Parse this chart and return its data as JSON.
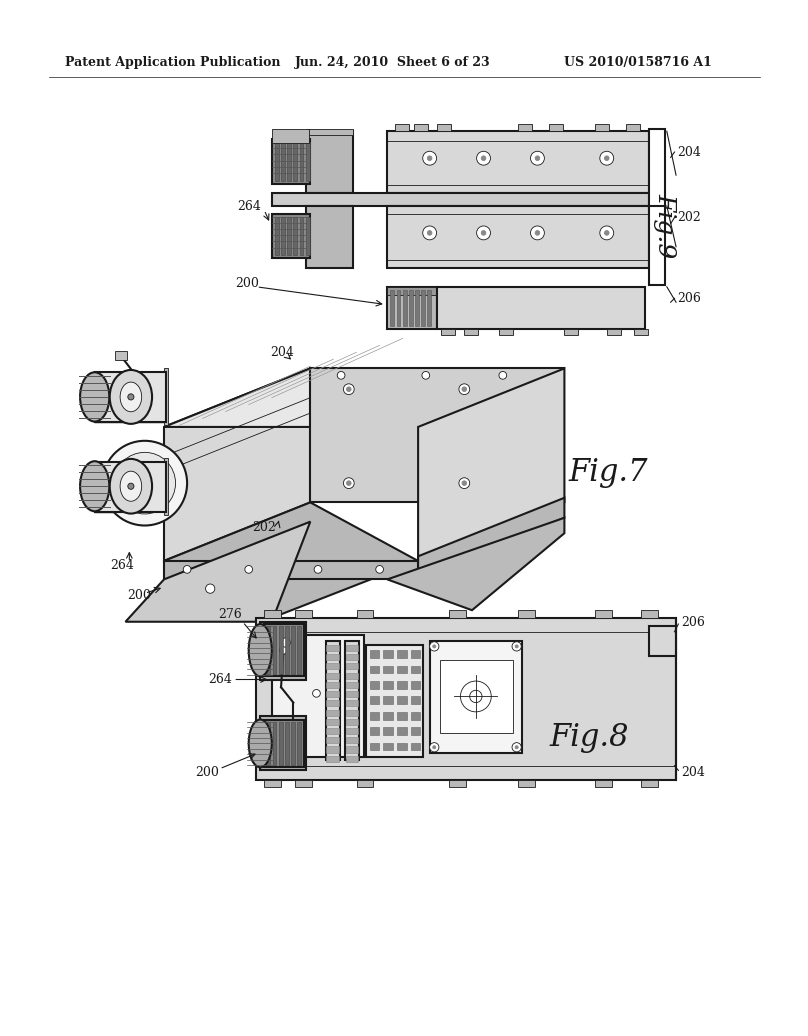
{
  "background_color": "#ffffff",
  "header_left": "Patent Application Publication",
  "header_center": "Jun. 24, 2010  Sheet 6 of 23",
  "header_right": "US 2010/0158716 A1",
  "fig9_label": "Fig.9",
  "fig7_label": "Fig.7",
  "fig8_label": "Fig.8",
  "line_color": "#1a1a1a",
  "shade_light": "#d8d8d8",
  "shade_mid": "#b8b8b8",
  "shade_dark": "#888888"
}
